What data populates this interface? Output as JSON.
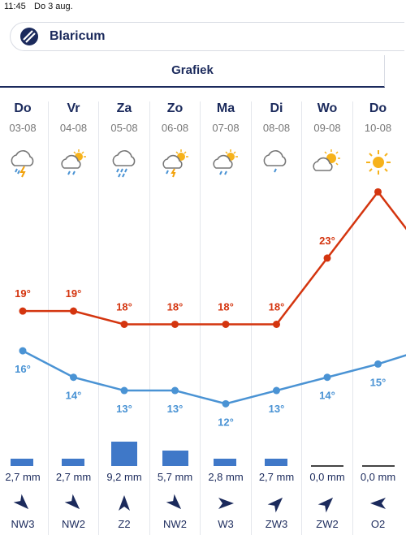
{
  "status": {
    "time": "11:45",
    "date": "Do 3 aug."
  },
  "location": {
    "name": "Blaricum"
  },
  "tab": {
    "label": "Grafiek"
  },
  "colors": {
    "max": "#d4350f",
    "min": "#4a93d4",
    "rain": "#3f78c8",
    "navy": "#1b2a5c"
  },
  "days": [
    {
      "name": "Do",
      "date": "03-08",
      "icon": "thunder-rain-icon",
      "max": 19,
      "min": 16,
      "rain_mm": 2.7,
      "rain_label": "2,7 mm",
      "wind_dir": "NW3",
      "wind_deg": 315
    },
    {
      "name": "Vr",
      "date": "04-08",
      "icon": "partly-sunny-rain-icon",
      "max": 19,
      "min": 14,
      "rain_mm": 2.7,
      "rain_label": "2,7 mm",
      "wind_dir": "NW2",
      "wind_deg": 315
    },
    {
      "name": "Za",
      "date": "05-08",
      "icon": "heavy-rain-icon",
      "max": 18,
      "min": 13,
      "rain_mm": 9.2,
      "rain_label": "9,2 mm",
      "wind_dir": "Z2",
      "wind_deg": 180
    },
    {
      "name": "Zo",
      "date": "06-08",
      "icon": "sun-thunder-rain-icon",
      "max": 18,
      "min": 13,
      "rain_mm": 5.7,
      "rain_label": "5,7 mm",
      "wind_dir": "NW2",
      "wind_deg": 315
    },
    {
      "name": "Ma",
      "date": "07-08",
      "icon": "partly-sunny-rain-icon",
      "max": 18,
      "min": 12,
      "rain_mm": 2.8,
      "rain_label": "2,8 mm",
      "wind_dir": "W3",
      "wind_deg": 270
    },
    {
      "name": "Di",
      "date": "08-08",
      "icon": "cloud-rain-icon",
      "max": 18,
      "min": 13,
      "rain_mm": 2.7,
      "rain_label": "2,7 mm",
      "wind_dir": "ZW3",
      "wind_deg": 225
    },
    {
      "name": "Wo",
      "date": "09-08",
      "icon": "partly-cloudy-icon",
      "max": 23,
      "min": 14,
      "rain_mm": 0.0,
      "rain_label": "0,0 mm",
      "wind_dir": "ZW2",
      "wind_deg": 225
    },
    {
      "name": "Do",
      "date": "10-08",
      "icon": "sun-icon",
      "max": 28,
      "min": 15,
      "rain_mm": 0.0,
      "rain_label": "0,0 mm",
      "wind_dir": "O2",
      "wind_deg": 90
    }
  ],
  "chart_data": {
    "type": "line",
    "categories": [
      "03-08",
      "04-08",
      "05-08",
      "06-08",
      "07-08",
      "08-08",
      "09-08",
      "10-08"
    ],
    "series": [
      {
        "values": [
          19,
          19,
          18,
          18,
          18,
          18,
          23,
          28
        ]
      },
      {
        "values": [
          16,
          14,
          13,
          13,
          12,
          13,
          14,
          15
        ]
      }
    ],
    "ylim": [
      10,
      29
    ]
  }
}
